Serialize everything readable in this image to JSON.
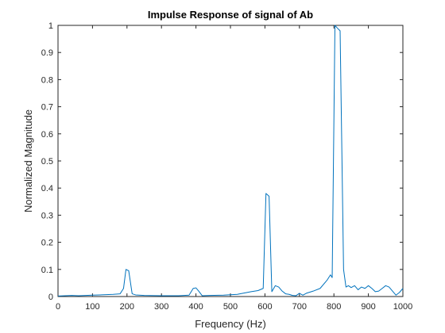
{
  "chart_data": {
    "type": "line",
    "title": "Impulse Response of signal of Ab",
    "xlabel": "Frequency (Hz)",
    "ylabel": "Normalized Magnitude",
    "xlim": [
      0,
      1000
    ],
    "ylim": [
      0,
      1
    ],
    "xticks": [
      0,
      100,
      200,
      300,
      400,
      500,
      600,
      700,
      800,
      900,
      1000
    ],
    "yticks": [
      0,
      0.1,
      0.2,
      0.3,
      0.4,
      0.5,
      0.6,
      0.7,
      0.8,
      0.9,
      1
    ],
    "ytick_labels": [
      "0",
      "0.1",
      "0.2",
      "0.3",
      "0.4",
      "0.5",
      "0.6",
      "0.7",
      "0.8",
      "0.9",
      "1"
    ],
    "grid": false,
    "box": true,
    "series": [
      {
        "color": "#0072BD",
        "x": [
          0,
          20,
          40,
          60,
          80,
          100,
          120,
          140,
          160,
          180,
          190,
          197,
          205,
          215,
          225,
          250,
          300,
          350,
          380,
          392,
          400,
          408,
          418,
          440,
          480,
          520,
          560,
          580,
          595,
          603,
          612,
          620,
          630,
          640,
          650,
          660,
          670,
          680,
          690,
          700,
          710,
          720,
          740,
          760,
          780,
          790,
          795,
          803,
          810,
          818,
          828,
          835,
          842,
          850,
          860,
          870,
          880,
          890,
          900,
          910,
          920,
          930,
          940,
          950,
          960,
          970,
          980,
          990,
          1000
        ],
        "y": [
          0.002,
          0.003,
          0.004,
          0.003,
          0.004,
          0.005,
          0.006,
          0.007,
          0.008,
          0.01,
          0.03,
          0.1,
          0.095,
          0.01,
          0.006,
          0.004,
          0.003,
          0.003,
          0.005,
          0.03,
          0.032,
          0.02,
          0.003,
          0.004,
          0.005,
          0.008,
          0.018,
          0.022,
          0.03,
          0.38,
          0.37,
          0.018,
          0.04,
          0.035,
          0.02,
          0.01,
          0.008,
          0.004,
          0.003,
          0.012,
          0.005,
          0.012,
          0.02,
          0.03,
          0.06,
          0.08,
          0.07,
          1.0,
          0.99,
          0.98,
          0.1,
          0.035,
          0.04,
          0.033,
          0.04,
          0.025,
          0.035,
          0.03,
          0.04,
          0.03,
          0.018,
          0.02,
          0.03,
          0.04,
          0.035,
          0.02,
          0.005,
          0.015,
          0.03
        ]
      }
    ]
  }
}
